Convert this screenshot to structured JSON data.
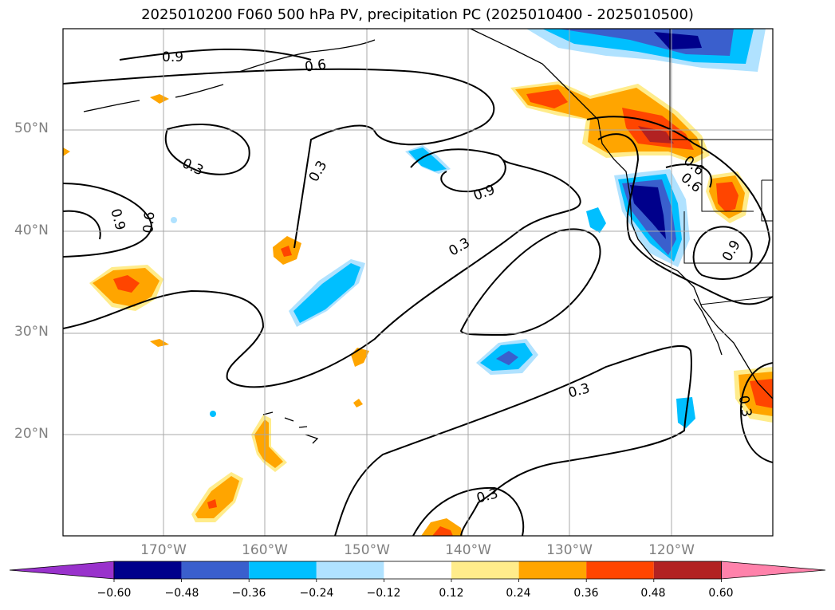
{
  "title": "2025010200 F060 500 hPa PV, precipitation PC (2025010400 - 2025010500)",
  "map": {
    "lat_labels": [
      "50°N",
      "40°N",
      "30°N",
      "20°N"
    ],
    "lat_values": [
      50,
      40,
      30,
      20
    ],
    "lon_labels": [
      "170°W",
      "160°W",
      "150°W",
      "140°W",
      "130°W",
      "120°W"
    ],
    "lon_values": [
      -170,
      -160,
      -150,
      -140,
      -130,
      -120
    ],
    "extent": {
      "lon_min": -180,
      "lon_max": -110,
      "lat_min": 10,
      "lat_max": 60
    },
    "gridlines": true,
    "contour_labels": [
      "0.9",
      "0.6",
      "0.3",
      "0.3",
      "0.9",
      "0.6",
      "0.9",
      "0.3",
      "0.3",
      "0.3",
      "0.6",
      "0.6",
      "0.9",
      "0.3"
    ]
  },
  "colorbar": {
    "tick_labels": [
      "−0.60",
      "−0.48",
      "−0.36",
      "−0.24",
      "−0.12",
      "0.12",
      "0.24",
      "0.36",
      "0.48",
      "0.60"
    ],
    "colors": [
      "#9932cc",
      "#00008b",
      "#3a5fcd",
      "#00bfff",
      "#b0e2ff",
      "#ffffff",
      "#ffec8b",
      "#ffa500",
      "#ff4500",
      "#b22222",
      "#ff82ab"
    ]
  }
}
